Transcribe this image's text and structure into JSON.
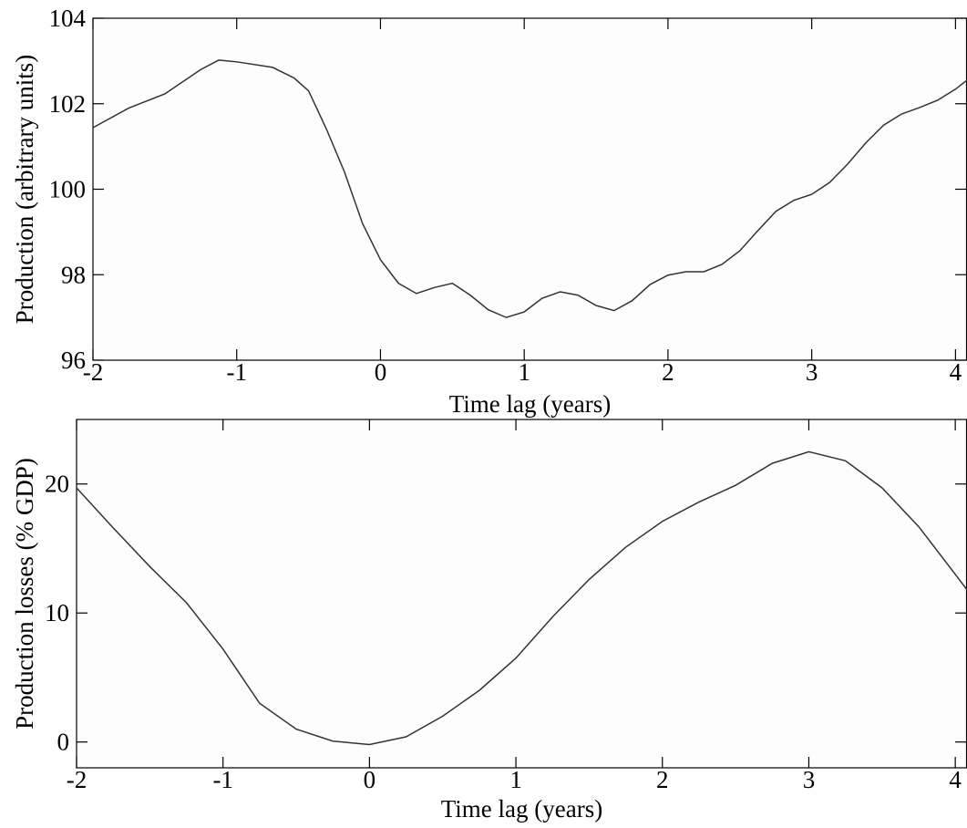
{
  "chart_data": [
    {
      "type": "line",
      "x": [
        -2,
        -1.75,
        -1.5,
        -1.25,
        -1.125,
        -1,
        -0.75,
        -0.6,
        -0.5,
        -0.375,
        -0.25,
        -0.125,
        0,
        0.125,
        0.25,
        0.375,
        0.5,
        0.625,
        0.75,
        0.875,
        1,
        1.125,
        1.25,
        1.375,
        1.5,
        1.625,
        1.75,
        1.875,
        2,
        2.125,
        2.25,
        2.375,
        2.5,
        2.625,
        2.75,
        2.875,
        3,
        3.125,
        3.25,
        3.375,
        3.5,
        3.625,
        3.75,
        3.875,
        4,
        4.08
      ],
      "series": [
        {
          "color": "#333333",
          "values": [
            101.44,
            101.9,
            102.23,
            102.8,
            103.02,
            102.98,
            102.85,
            102.6,
            102.3,
            101.4,
            100.4,
            99.2,
            98.35,
            97.8,
            97.56,
            97.7,
            97.8,
            97.52,
            97.18,
            97.0,
            97.13,
            97.45,
            97.6,
            97.52,
            97.28,
            97.16,
            97.39,
            97.77,
            97.99,
            98.07,
            98.07,
            98.24,
            98.56,
            99.03,
            99.48,
            99.74,
            99.88,
            100.16,
            100.59,
            101.08,
            101.5,
            101.76,
            101.91,
            102.08,
            102.34,
            102.55
          ]
        }
      ],
      "xlabel": "Time lag (years)",
      "ylabel": "Production (arbitrary units)",
      "xlim": [
        -2,
        4.08
      ],
      "ylim": [
        96,
        104
      ],
      "xticks": [
        -2,
        -1,
        0,
        1,
        2,
        3,
        4
      ],
      "yticks": [
        96,
        98,
        100,
        102,
        104
      ]
    },
    {
      "type": "line",
      "x": [
        -2,
        -1.75,
        -1.5,
        -1.25,
        -1,
        -0.75,
        -0.5,
        -0.25,
        0,
        0.25,
        0.5,
        0.75,
        1,
        1.25,
        1.5,
        1.75,
        2,
        2.25,
        2.5,
        2.75,
        3,
        3.25,
        3.5,
        3.75,
        4,
        4.08
      ],
      "series": [
        {
          "color": "#333333",
          "values": [
            19.7,
            16.6,
            13.6,
            10.8,
            7.2,
            3.0,
            1.0,
            0.07,
            -0.2,
            0.4,
            2.0,
            4.0,
            6.5,
            9.7,
            12.6,
            15.1,
            17.1,
            18.6,
            19.9,
            21.6,
            22.5,
            21.8,
            19.7,
            16.7,
            13.0,
            11.8
          ]
        }
      ],
      "xlabel": "Time lag (years)",
      "ylabel": "Production losses (% GDP)",
      "xlim": [
        -2,
        4.08
      ],
      "ylim": [
        -2,
        25
      ],
      "xticks": [
        -2,
        -1,
        0,
        1,
        2,
        3,
        4
      ],
      "yticks": [
        0,
        10,
        20
      ]
    }
  ]
}
